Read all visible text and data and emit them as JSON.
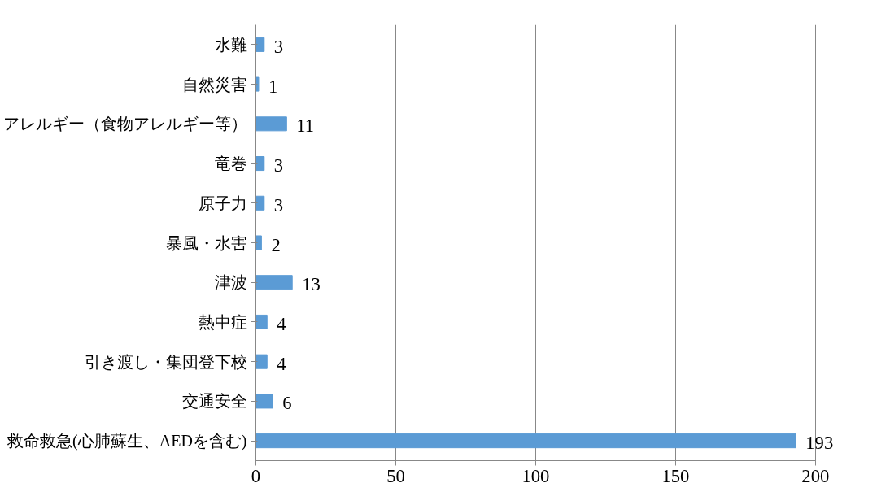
{
  "chart_data": {
    "type": "bar",
    "orientation": "horizontal",
    "categories": [
      "水難",
      "自然災害",
      "アレルギー（食物アレルギー等）",
      "竜巻",
      "原子力",
      "暴風・水害",
      "津波",
      "熱中症",
      "引き渡し・集団登下校",
      "交通安全",
      "救命救急(心肺蘇生、AEDを含む)"
    ],
    "values": [
      3,
      1,
      11,
      3,
      3,
      2,
      13,
      4,
      4,
      6,
      193
    ],
    "color": "#5b9bd5",
    "xlim": [
      0,
      200
    ],
    "xticks": [
      0,
      50,
      100,
      150,
      200
    ],
    "grid": "x",
    "data_labels": true
  }
}
